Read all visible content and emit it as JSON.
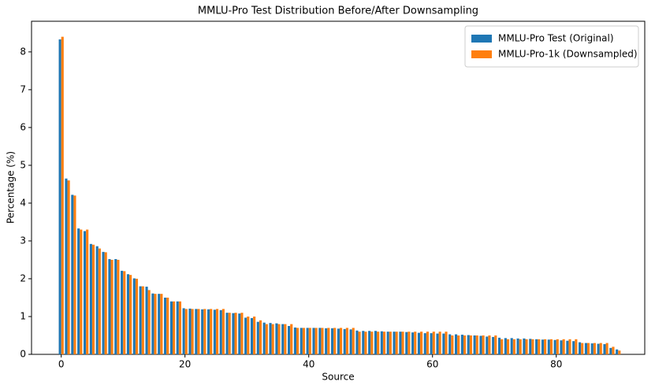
{
  "chart_data": {
    "type": "bar",
    "title": "MMLU-Pro Test Distribution Before/After Downsampling",
    "x_label": "Source",
    "y_label": "Percentage (%)",
    "x": [
      0,
      1,
      2,
      3,
      4,
      5,
      6,
      7,
      8,
      9,
      10,
      11,
      12,
      13,
      14,
      15,
      16,
      17,
      18,
      19,
      20,
      21,
      22,
      23,
      24,
      25,
      26,
      27,
      28,
      29,
      30,
      31,
      32,
      33,
      34,
      35,
      36,
      37,
      38,
      39,
      40,
      41,
      42,
      43,
      44,
      45,
      46,
      47,
      48,
      49,
      50,
      51,
      52,
      53,
      54,
      55,
      56,
      57,
      58,
      59,
      60,
      61,
      62,
      63,
      64,
      65,
      66,
      67,
      68,
      69,
      70,
      71,
      72,
      73,
      74,
      75,
      76,
      77,
      78,
      79,
      80,
      81,
      82,
      83,
      84,
      85,
      86,
      87,
      88,
      89,
      90
    ],
    "series": [
      {
        "name": "MMLU-Pro Test (Original)",
        "color": "#1f77b4",
        "values": [
          8.33,
          4.65,
          4.22,
          3.33,
          3.26,
          2.92,
          2.86,
          2.71,
          2.52,
          2.52,
          2.21,
          2.12,
          2.01,
          1.8,
          1.79,
          1.61,
          1.6,
          1.5,
          1.4,
          1.4,
          1.22,
          1.21,
          1.2,
          1.19,
          1.19,
          1.18,
          1.17,
          1.1,
          1.09,
          1.08,
          0.97,
          0.96,
          0.86,
          0.84,
          0.83,
          0.82,
          0.8,
          0.75,
          0.71,
          0.7,
          0.7,
          0.7,
          0.7,
          0.69,
          0.69,
          0.68,
          0.67,
          0.66,
          0.63,
          0.62,
          0.62,
          0.62,
          0.61,
          0.6,
          0.6,
          0.6,
          0.59,
          0.58,
          0.57,
          0.56,
          0.56,
          0.55,
          0.55,
          0.53,
          0.53,
          0.52,
          0.51,
          0.5,
          0.49,
          0.47,
          0.46,
          0.44,
          0.43,
          0.43,
          0.42,
          0.42,
          0.41,
          0.4,
          0.39,
          0.39,
          0.38,
          0.37,
          0.36,
          0.35,
          0.32,
          0.3,
          0.29,
          0.28,
          0.27,
          0.17,
          0.13
        ]
      },
      {
        "name": "MMLU-Pro-1k (Downsampled)",
        "color": "#ff7f0e",
        "values": [
          8.4,
          4.6,
          4.2,
          3.3,
          3.3,
          2.9,
          2.8,
          2.7,
          2.5,
          2.5,
          2.2,
          2.1,
          2.0,
          1.8,
          1.7,
          1.6,
          1.6,
          1.5,
          1.4,
          1.4,
          1.2,
          1.2,
          1.2,
          1.2,
          1.2,
          1.2,
          1.2,
          1.1,
          1.1,
          1.1,
          1.0,
          1.0,
          0.9,
          0.8,
          0.8,
          0.8,
          0.8,
          0.8,
          0.7,
          0.7,
          0.7,
          0.7,
          0.7,
          0.7,
          0.7,
          0.7,
          0.7,
          0.7,
          0.6,
          0.6,
          0.6,
          0.6,
          0.6,
          0.6,
          0.6,
          0.6,
          0.6,
          0.6,
          0.6,
          0.6,
          0.6,
          0.6,
          0.6,
          0.5,
          0.5,
          0.5,
          0.5,
          0.5,
          0.5,
          0.5,
          0.5,
          0.4,
          0.4,
          0.4,
          0.4,
          0.4,
          0.4,
          0.4,
          0.4,
          0.4,
          0.4,
          0.4,
          0.4,
          0.4,
          0.3,
          0.3,
          0.3,
          0.3,
          0.3,
          0.2,
          0.1
        ]
      }
    ],
    "xlim": [
      -4.8,
      94.3
    ],
    "ylim": [
      0,
      8.81
    ],
    "xticks": [
      0,
      20,
      40,
      60,
      80
    ],
    "yticks": [
      0,
      1,
      2,
      3,
      4,
      5,
      6,
      7,
      8
    ],
    "legend": "upper right"
  }
}
